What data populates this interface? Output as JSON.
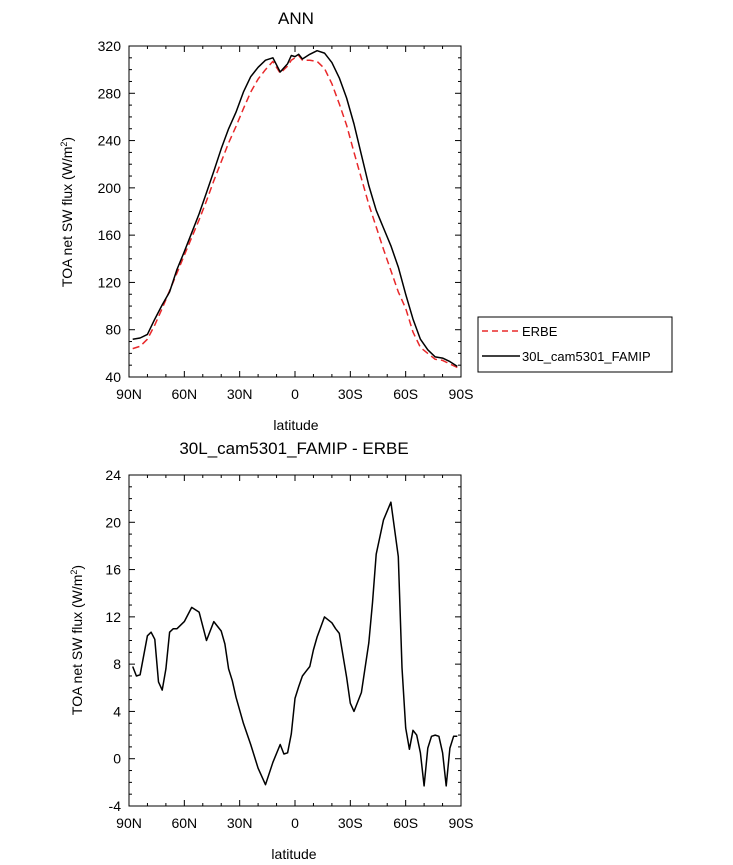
{
  "chart_data": [
    {
      "type": "line",
      "title": "ANN",
      "xlabel": "latitude",
      "ylabel": "TOA net SW flux (W/m²)",
      "xlim": [
        90,
        -90
      ],
      "ylim": [
        40,
        320
      ],
      "xticks": [
        {
          "value": 90,
          "label": "90N"
        },
        {
          "value": 60,
          "label": "60N"
        },
        {
          "value": 30,
          "label": "30N"
        },
        {
          "value": 0,
          "label": "0"
        },
        {
          "value": -30,
          "label": "30S"
        },
        {
          "value": -60,
          "label": "60S"
        },
        {
          "value": -90,
          "label": "90S"
        }
      ],
      "yticks": [
        40,
        80,
        120,
        160,
        200,
        240,
        280,
        320
      ],
      "legend_position": "right",
      "series": [
        {
          "name": "ERBE",
          "color": "#e8282a",
          "dash": "dashed",
          "x": [
            88,
            84,
            80,
            76,
            72,
            68,
            64,
            60,
            56,
            52,
            48,
            44,
            40,
            36,
            32,
            28,
            24,
            20,
            16,
            12,
            8,
            4,
            2,
            0,
            -2,
            -4,
            -8,
            -12,
            -16,
            -20,
            -24,
            -28,
            -32,
            -36,
            -40,
            -44,
            -48,
            -52,
            -56,
            -60,
            -64,
            -68,
            -72,
            -76,
            -80,
            -84,
            -88
          ],
          "y": [
            64,
            66,
            72,
            84,
            98,
            113,
            128,
            143,
            158,
            173,
            189,
            206,
            222,
            238,
            252,
            267,
            281,
            292,
            300,
            307,
            297,
            303,
            308,
            310,
            312,
            308,
            308,
            307,
            301,
            288,
            271,
            253,
            230,
            208,
            186,
            167,
            148,
            130,
            112,
            98,
            78,
            65,
            60,
            55,
            54,
            51,
            48
          ]
        },
        {
          "name": "30L_cam5301_FAMIP",
          "color": "#000000",
          "dash": "solid",
          "x": [
            88,
            84,
            80,
            76,
            72,
            68,
            64,
            60,
            56,
            52,
            48,
            44,
            40,
            36,
            32,
            28,
            24,
            20,
            16,
            12,
            8,
            4,
            2,
            0,
            -2,
            -4,
            -8,
            -12,
            -16,
            -20,
            -24,
            -28,
            -32,
            -36,
            -40,
            -44,
            -48,
            -52,
            -56,
            -60,
            -64,
            -68,
            -72,
            -76,
            -80,
            -84,
            -88
          ],
          "y": [
            72,
            73,
            76,
            89,
            101,
            112,
            131,
            146,
            162,
            178,
            196,
            214,
            233,
            250,
            264,
            281,
            294,
            302,
            308,
            310,
            298,
            305,
            312,
            311,
            313,
            309,
            313,
            316,
            314,
            306,
            293,
            276,
            254,
            228,
            202,
            181,
            166,
            151,
            133,
            110,
            89,
            72,
            63,
            57,
            56,
            53,
            49
          ]
        }
      ]
    },
    {
      "type": "line",
      "title": "30L_cam5301_FAMIP - ERBE",
      "xlabel": "latitude",
      "ylabel": "TOA net SW flux (W/m²)",
      "xlim": [
        90,
        -90
      ],
      "ylim": [
        -4,
        24
      ],
      "xticks": [
        {
          "value": 90,
          "label": "90N"
        },
        {
          "value": 60,
          "label": "60N"
        },
        {
          "value": 30,
          "label": "30N"
        },
        {
          "value": 0,
          "label": "0"
        },
        {
          "value": -30,
          "label": "30S"
        },
        {
          "value": -60,
          "label": "60S"
        },
        {
          "value": -90,
          "label": "90S"
        }
      ],
      "yticks": [
        -4,
        0,
        4,
        8,
        12,
        16,
        20,
        24
      ],
      "series": [
        {
          "name": "",
          "color": "#000000",
          "dash": "solid",
          "x": [
            88,
            86,
            84,
            80,
            78,
            76,
            74,
            72,
            70,
            68,
            66,
            64,
            60,
            56,
            52,
            48,
            44,
            40,
            38,
            36,
            34,
            32,
            28,
            24,
            20,
            16,
            12,
            8,
            6,
            4,
            2,
            0,
            -2,
            -4,
            -6,
            -8,
            -10,
            -12,
            -16,
            -20,
            -22,
            -24,
            -28,
            -30,
            -32,
            -36,
            -40,
            -42,
            -44,
            -48,
            -52,
            -56,
            -58,
            -60,
            -62,
            -64,
            -66,
            -68,
            -70,
            -72,
            -74,
            -76,
            -78,
            -80,
            -82,
            -84,
            -86,
            -88
          ],
          "y": [
            7.8,
            7.0,
            7.1,
            10.4,
            10.7,
            10.1,
            6.5,
            5.8,
            7.6,
            10.7,
            11.0,
            11.0,
            11.6,
            12.8,
            12.4,
            10.0,
            11.6,
            10.8,
            9.7,
            7.6,
            6.6,
            5.2,
            3.0,
            1.2,
            -0.8,
            -2.2,
            -0.3,
            1.2,
            0.4,
            0.5,
            2.1,
            5.1,
            6.1,
            7.0,
            7.4,
            7.8,
            9.2,
            10.3,
            12.0,
            11.5,
            11.0,
            10.6,
            6.9,
            4.7,
            4.0,
            5.6,
            9.8,
            13.2,
            17.3,
            20.2,
            21.7,
            17.1,
            7.7,
            2.6,
            0.8,
            2.4,
            2.0,
            0.5,
            -2.3,
            0.9,
            1.9,
            2.0,
            1.9,
            0.5,
            -2.3,
            0.9,
            1.9,
            1.9
          ]
        }
      ]
    }
  ]
}
